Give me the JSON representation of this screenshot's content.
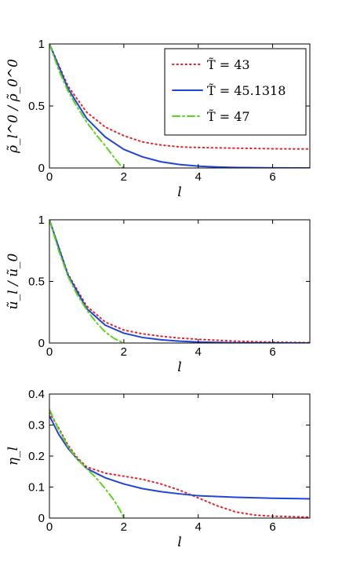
{
  "chart_data": [
    {
      "type": "line",
      "xlabel": "l",
      "ylabel": "ρ̃_l^0 / ρ̃_0^0",
      "xlim": [
        0,
        7
      ],
      "ylim": [
        0,
        1
      ],
      "xticks": [
        "0",
        "2",
        "4",
        "6"
      ],
      "yticks": [
        "0",
        "0.5",
        "1"
      ],
      "grid": false,
      "legend_position": "top-right",
      "series": [
        {
          "name": "T̃ = 43",
          "color": "#e8202a",
          "dash": "dotted",
          "x": [
            0,
            0.5,
            1,
            1.5,
            2,
            2.5,
            3,
            3.5,
            4,
            5,
            6,
            7
          ],
          "y": [
            1.0,
            0.66,
            0.45,
            0.33,
            0.26,
            0.21,
            0.185,
            0.17,
            0.165,
            0.16,
            0.155,
            0.153
          ]
        },
        {
          "name": "T̃ = 45.1318",
          "color": "#2045d6",
          "dash": "solid",
          "x": [
            0,
            0.5,
            1,
            1.5,
            2,
            2.5,
            3,
            3.5,
            4,
            4.5,
            5,
            6,
            7
          ],
          "y": [
            1.0,
            0.64,
            0.4,
            0.25,
            0.15,
            0.09,
            0.05,
            0.028,
            0.015,
            0.008,
            0.004,
            0.001,
            0.0
          ]
        },
        {
          "name": "T̃ = 47",
          "color": "#58d61c",
          "dash": "dashdot",
          "x": [
            0,
            0.25,
            0.5,
            0.75,
            1,
            1.25,
            1.5,
            1.75,
            1.9,
            2.0
          ],
          "y": [
            1.0,
            0.79,
            0.62,
            0.49,
            0.37,
            0.27,
            0.18,
            0.08,
            0.025,
            0.0
          ]
        }
      ]
    },
    {
      "type": "line",
      "xlabel": "l",
      "ylabel": "ũ_l / ũ_0",
      "xlim": [
        0,
        7
      ],
      "ylim": [
        0,
        1
      ],
      "xticks": [
        "0",
        "2",
        "4",
        "6"
      ],
      "yticks": [
        "0",
        "0.5",
        "1"
      ],
      "grid": false,
      "series": [
        {
          "color": "#e8202a",
          "dash": "dotted",
          "x": [
            0,
            0.5,
            1,
            1.5,
            2,
            2.5,
            3,
            3.5,
            4,
            5,
            6,
            7
          ],
          "y": [
            1.0,
            0.56,
            0.3,
            0.17,
            0.105,
            0.075,
            0.055,
            0.04,
            0.03,
            0.015,
            0.007,
            0.003
          ]
        },
        {
          "color": "#2045d6",
          "dash": "solid",
          "x": [
            0,
            0.5,
            1,
            1.5,
            2,
            2.5,
            3,
            3.5,
            4,
            5,
            6,
            7
          ],
          "y": [
            1.0,
            0.55,
            0.28,
            0.145,
            0.08,
            0.045,
            0.026,
            0.015,
            0.008,
            0.002,
            0.0005,
            0.0
          ]
        },
        {
          "color": "#58d61c",
          "dash": "dashdot",
          "x": [
            0,
            0.25,
            0.5,
            0.75,
            1,
            1.25,
            1.5,
            1.75,
            2.0
          ],
          "y": [
            1.0,
            0.75,
            0.54,
            0.39,
            0.27,
            0.17,
            0.09,
            0.035,
            0.0
          ]
        }
      ]
    },
    {
      "type": "line",
      "xlabel": "l",
      "ylabel": "η_l",
      "xlim": [
        0,
        7
      ],
      "ylim": [
        0,
        0.4
      ],
      "xticks": [
        "0",
        "2",
        "4",
        "6"
      ],
      "yticks": [
        "0",
        "0.1",
        "0.2",
        "0.3",
        "0.4"
      ],
      "grid": false,
      "series": [
        {
          "color": "#e8202a",
          "dash": "dotted",
          "x": [
            0,
            0.25,
            0.5,
            0.75,
            1,
            1.5,
            2,
            2.5,
            3,
            3.5,
            4,
            4.5,
            5,
            5.5,
            6,
            7
          ],
          "y": [
            0.34,
            0.29,
            0.235,
            0.195,
            0.165,
            0.145,
            0.135,
            0.125,
            0.11,
            0.09,
            0.065,
            0.04,
            0.02,
            0.01,
            0.006,
            0.003
          ]
        },
        {
          "color": "#2045d6",
          "dash": "solid",
          "x": [
            0,
            0.25,
            0.5,
            0.75,
            1,
            1.5,
            2,
            2.5,
            3,
            3.5,
            4,
            5,
            6,
            7
          ],
          "y": [
            0.33,
            0.27,
            0.225,
            0.19,
            0.16,
            0.13,
            0.11,
            0.095,
            0.085,
            0.078,
            0.072,
            0.067,
            0.064,
            0.062
          ]
        },
        {
          "color": "#58d61c",
          "dash": "dashdot",
          "x": [
            0,
            0.25,
            0.5,
            0.75,
            1,
            1.25,
            1.5,
            1.75,
            1.9,
            2.0
          ],
          "y": [
            0.35,
            0.285,
            0.23,
            0.19,
            0.16,
            0.13,
            0.095,
            0.055,
            0.025,
            0.0
          ]
        }
      ]
    }
  ]
}
